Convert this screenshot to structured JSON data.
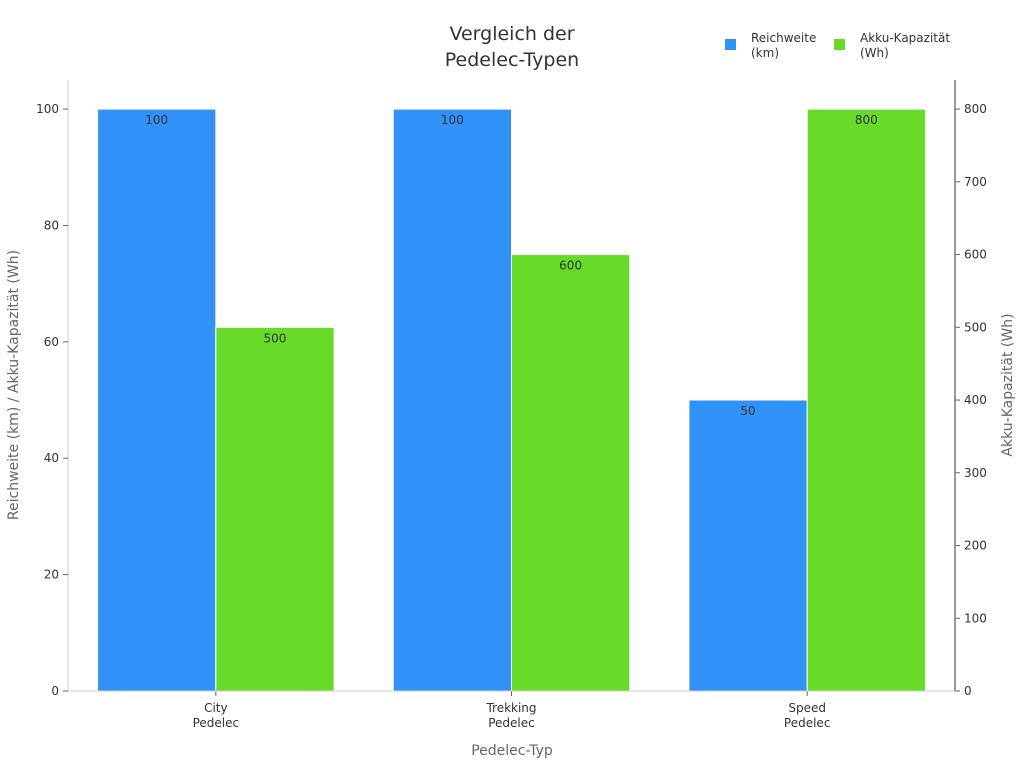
{
  "chart_data": {
    "type": "bar",
    "title_lines": [
      "Vergleich der",
      "Pedelec-Typen"
    ],
    "categories": [
      [
        "City",
        "Pedelec"
      ],
      [
        "Trekking",
        "Pedelec"
      ],
      [
        "Speed",
        "Pedelec"
      ]
    ],
    "xlabel": "Pedelec-Typ",
    "ylabel": "Reichweite (km) / Akku-Kapazität (Wh)",
    "y2label": "Akku-Kapazität (Wh)",
    "ylim": [
      0,
      105
    ],
    "y2lim": [
      0,
      840
    ],
    "yticks": [
      0,
      20,
      40,
      60,
      80,
      100
    ],
    "y2ticks": [
      0,
      100,
      200,
      300,
      400,
      500,
      600,
      700,
      800
    ],
    "grid": false,
    "legend_position": "top-right",
    "series": [
      {
        "name": "Reichweite (km)",
        "legend_lines": [
          "Reichweite",
          "(km)"
        ],
        "axis": "left",
        "color": "#3092F7",
        "values": [
          100,
          100,
          50
        ]
      },
      {
        "name": "Akku-Kapazität (Wh)",
        "legend_lines": [
          "Akku-Kapazität",
          "(Wh)"
        ],
        "axis": "right",
        "color": "#68DA2A",
        "values": [
          500,
          600,
          800
        ]
      }
    ]
  }
}
